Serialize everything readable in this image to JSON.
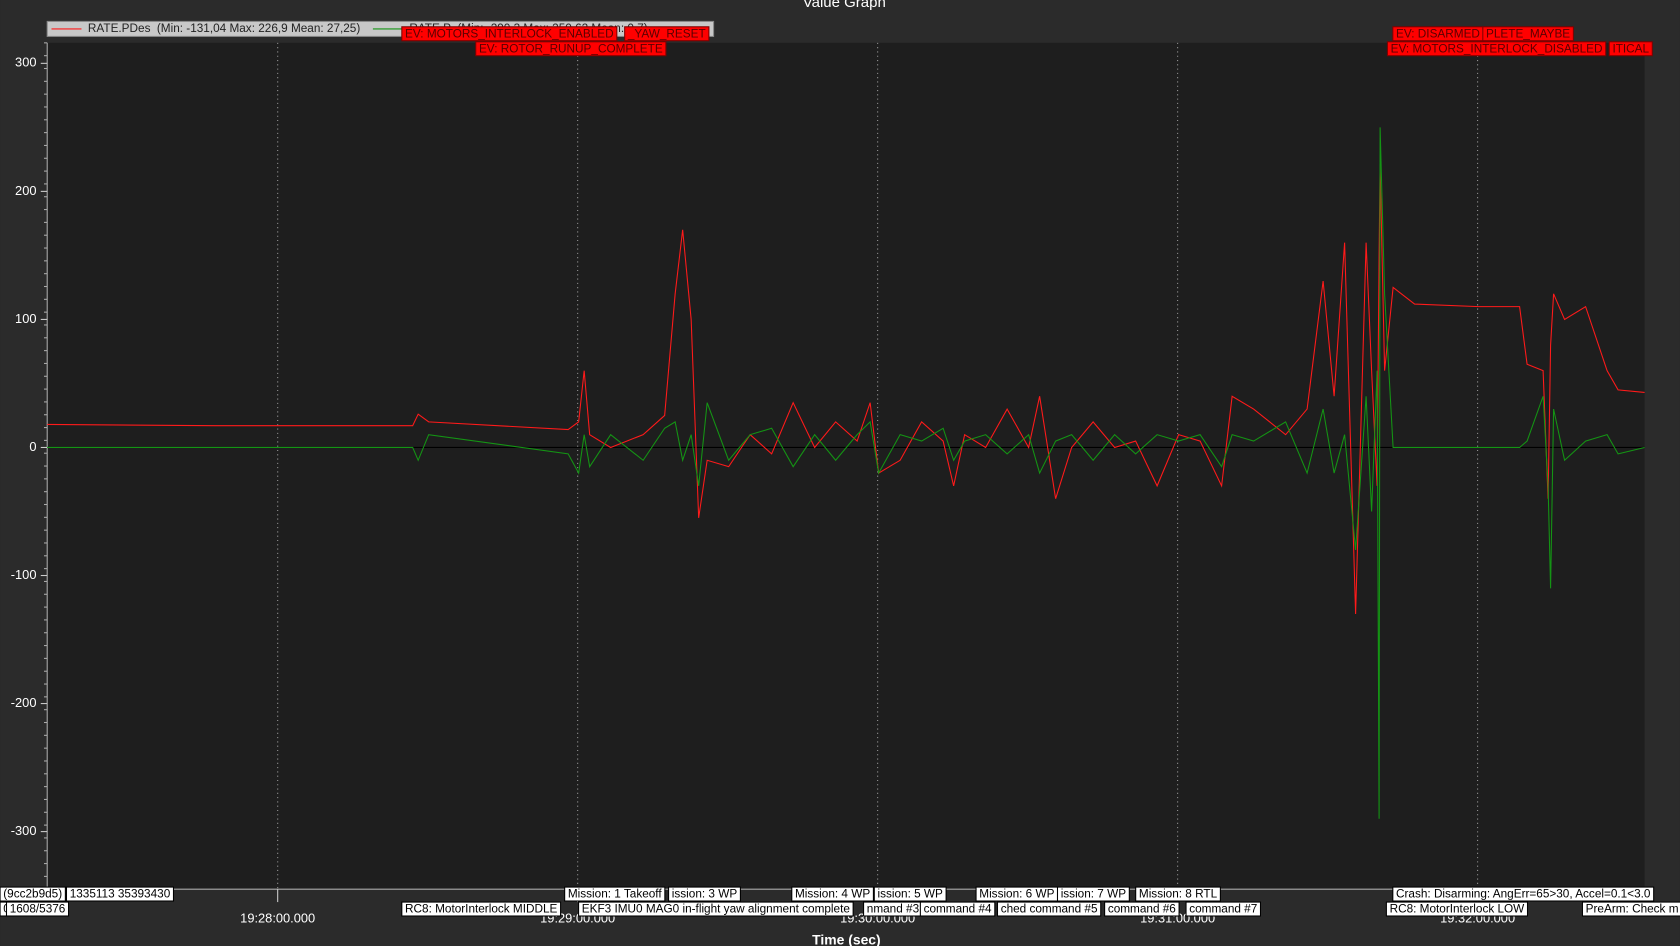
{
  "chart_data": {
    "type": "line",
    "title": "Value Graph",
    "x_label": "Time (sec)",
    "xlim": [
      69433.9,
      69753.4
    ],
    "xticks": [
      {
        "value": 69480,
        "label": "19:28:00.000"
      },
      {
        "value": 69540,
        "label": "19:29:00.000"
      },
      {
        "value": 69600,
        "label": "19:30:00.000"
      },
      {
        "value": 69660,
        "label": "19:31:00.000"
      },
      {
        "value": 69720,
        "label": "19:32:00.000"
      }
    ],
    "ylim": [
      -345,
      316
    ],
    "yticks": [
      -300,
      -200,
      -100,
      0,
      100,
      200,
      300
    ],
    "grid": true,
    "x": [
      69433.9,
      69467.4,
      69507.0,
      69508.1,
      69510.2,
      69538.1,
      69540.2,
      69541.3,
      69542.4,
      69546.6,
      69553.1,
      69557.4,
      69559.5,
      69561.0,
      69562.7,
      69564.2,
      69565.9,
      69570.2,
      69574.5,
      69578.8,
      69583.1,
      69587.4,
      69591.6,
      69595.9,
      69598.5,
      69600.2,
      69604.5,
      69608.8,
      69613.1,
      69615.2,
      69617.4,
      69621.6,
      69625.9,
      69630.2,
      69632.4,
      69635.6,
      69638.8,
      69643.1,
      69647.4,
      69651.6,
      69655.9,
      69660.2,
      69664.5,
      69668.8,
      69670.9,
      69675.2,
      69681.6,
      69685.9,
      69689.1,
      69691.3,
      69693.4,
      69695.6,
      69697.7,
      69698.8,
      69699.9,
      69700.3,
      69700.5,
      69701.4,
      69703.1,
      69707.4,
      69720.2,
      69728.4,
      69729.9,
      69733.1,
      69734.1,
      69734.6,
      69735.2,
      69737.4,
      69741.6,
      69745.9,
      69748.1,
      69753.4
    ],
    "series": [
      {
        "name": "RATE.PDes",
        "legend_stats": "(Min: -131,04 Max: 226,9 Mean: 27,25)",
        "color": "#ff1a1a",
        "values": [
          18,
          17,
          17,
          26,
          20,
          14,
          20,
          60,
          10,
          0,
          10,
          25,
          120,
          170,
          100,
          -55,
          -10,
          -15,
          10,
          -5,
          35,
          0,
          20,
          5,
          35,
          -20,
          -10,
          20,
          5,
          -30,
          10,
          0,
          30,
          0,
          40,
          -40,
          0,
          20,
          0,
          5,
          -30,
          10,
          5,
          -30,
          40,
          30,
          10,
          30,
          130,
          40,
          160,
          -130,
          160,
          60,
          -30,
          150,
          220,
          60,
          125,
          112,
          110,
          110,
          65,
          60,
          -40,
          80,
          120,
          100,
          110,
          60,
          45,
          43
        ]
      },
      {
        "name": "RATE.P",
        "legend_stats": "(Min: -290,3 Max: 250,62 Mean: 0,7)",
        "color": "#149414",
        "values": [
          0,
          0,
          0,
          -10,
          10,
          -5,
          -20,
          10,
          -15,
          10,
          -10,
          15,
          20,
          -10,
          10,
          -30,
          35,
          -10,
          10,
          15,
          -15,
          10,
          -10,
          10,
          20,
          -20,
          10,
          5,
          15,
          -10,
          5,
          10,
          -5,
          10,
          -20,
          5,
          10,
          -10,
          10,
          -5,
          10,
          5,
          10,
          -15,
          10,
          5,
          20,
          -20,
          30,
          -20,
          10,
          -80,
          40,
          -50,
          60,
          -290,
          250,
          120,
          0,
          0,
          0,
          0,
          5,
          40,
          -30,
          -110,
          30,
          -10,
          5,
          10,
          -5,
          0
        ]
      }
    ],
    "annotations": [
      "EV: MOTORS_INTERLOCK_ENABLED",
      "_YAW_RESET",
      "EV: ROTOR_RUNUP_COMPLETE",
      "EV: DISARMED",
      "PLETE_MAYBE",
      "EV: MOTORS_INTERLOCK_DISABLED",
      "ITICAL",
      "(9cc2b9d5)",
      "1335113 35393430",
      "0",
      "1608/5376",
      "RC8: MotorInterlock MIDDLE",
      "Mission: 1 Takeoff",
      "ission: 3 WP",
      "EKF3 IMU0 MAG0 in-flight yaw alignment complete",
      "Mission: 4 WP",
      "ission: 5 WP",
      "nmand #3",
      "command #4",
      "Mission: 6 WP",
      "ission: 7 WP",
      "ched command #5",
      "Mission: 8 RTL",
      "command #6",
      "command #7",
      "Crash: Disarming: AngErr=65>30, Accel=0.1<3.0",
      "RC8: MotorInterlock LOW",
      "PreArm: Check m"
    ]
  }
}
